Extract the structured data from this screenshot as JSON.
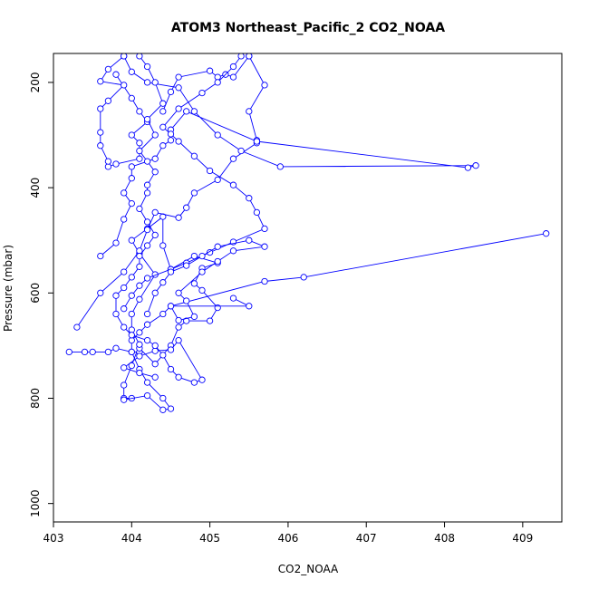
{
  "chart_data": {
    "type": "line",
    "title": "ATOM3 Northeast_Pacific_2 CO2_NOAA",
    "xlabel": "CO2_NOAA",
    "ylabel": "Pressure (mbar)",
    "xlim": [
      403.0,
      409.5
    ],
    "ylim": [
      1035,
      145
    ],
    "y_reversed": true,
    "x_ticks": [
      "403",
      "404",
      "405",
      "406",
      "407",
      "408",
      "409"
    ],
    "y_ticks": [
      "200",
      "400",
      "600",
      "800",
      "1000"
    ],
    "line_color": "#0000ff",
    "marker": "open-circle",
    "series": [
      {
        "points": [
          [
            403.2,
            712
          ],
          [
            403.4,
            712
          ],
          [
            403.5,
            712
          ],
          [
            403.7,
            712
          ],
          [
            403.8,
            705
          ],
          [
            404.0,
            712
          ],
          [
            404.1,
            712
          ],
          [
            404.1,
            705
          ],
          [
            404.3,
            735
          ],
          [
            404.5,
            700
          ],
          [
            404.6,
            665
          ],
          [
            404.7,
            653
          ],
          [
            405.0,
            653
          ],
          [
            405.1,
            628
          ],
          [
            404.9,
            595
          ],
          [
            404.8,
            582
          ],
          [
            404.9,
            553
          ],
          [
            405.1,
            543
          ],
          [
            404.8,
            530
          ],
          [
            404.5,
            555
          ],
          [
            404.4,
            510
          ],
          [
            404.4,
            455
          ],
          [
            404.2,
            478
          ],
          [
            404.0,
            500
          ],
          [
            404.1,
            525
          ],
          [
            404.3,
            565
          ],
          [
            404.1,
            612
          ],
          [
            404.0,
            640
          ],
          [
            404.0,
            670
          ],
          [
            404.1,
            698
          ],
          [
            404.0,
            738
          ],
          [
            403.9,
            775
          ],
          [
            403.9,
            800
          ],
          [
            404.0,
            800
          ]
        ]
      },
      {
        "points": [
          [
            403.3,
            665
          ],
          [
            403.6,
            600
          ],
          [
            403.9,
            560
          ],
          [
            404.1,
            520
          ],
          [
            404.2,
            480
          ],
          [
            404.3,
            447
          ],
          [
            404.6,
            457
          ],
          [
            404.7,
            438
          ],
          [
            404.8,
            410
          ],
          [
            405.1,
            385
          ],
          [
            405.3,
            345
          ],
          [
            405.6,
            315
          ],
          [
            405.6,
            310
          ],
          [
            405.5,
            255
          ],
          [
            405.7,
            205
          ],
          [
            405.5,
            150
          ]
        ]
      },
      {
        "points": [
          [
            403.6,
            530
          ],
          [
            403.8,
            505
          ],
          [
            403.9,
            460
          ],
          [
            404.0,
            430
          ],
          [
            403.9,
            410
          ],
          [
            404.0,
            382
          ],
          [
            404.0,
            360
          ],
          [
            404.3,
            345
          ],
          [
            404.4,
            320
          ],
          [
            404.5,
            310
          ],
          [
            404.5,
            290
          ],
          [
            404.7,
            255
          ],
          [
            405.6,
            312
          ],
          [
            408.3,
            362
          ],
          [
            408.4,
            358
          ],
          [
            405.9,
            360
          ],
          [
            405.4,
            330
          ],
          [
            405.1,
            300
          ],
          [
            404.8,
            255
          ],
          [
            404.6,
            210
          ],
          [
            404.2,
            200
          ],
          [
            404.0,
            180
          ],
          [
            403.9,
            150
          ]
        ]
      },
      {
        "points": [
          [
            409.3,
            487
          ],
          [
            406.2,
            570
          ],
          [
            405.7,
            578
          ],
          [
            404.5,
            625
          ],
          [
            404.4,
            640
          ],
          [
            404.2,
            660
          ],
          [
            404.1,
            675
          ],
          [
            404.0,
            690
          ],
          [
            404.0,
            712
          ],
          [
            404.1,
            745
          ],
          [
            404.2,
            770
          ],
          [
            404.4,
            800
          ],
          [
            404.5,
            820
          ],
          [
            404.4,
            822
          ],
          [
            404.2,
            795
          ],
          [
            403.9,
            803
          ]
        ]
      },
      {
        "points": [
          [
            403.8,
            185
          ],
          [
            404.0,
            230
          ],
          [
            404.1,
            255
          ],
          [
            404.2,
            275
          ],
          [
            404.0,
            300
          ],
          [
            404.1,
            315
          ],
          [
            404.1,
            345
          ],
          [
            403.8,
            355
          ],
          [
            403.7,
            360
          ],
          [
            403.7,
            350
          ],
          [
            403.6,
            320
          ],
          [
            403.6,
            295
          ],
          [
            403.6,
            250
          ],
          [
            403.7,
            235
          ],
          [
            403.9,
            205
          ],
          [
            403.6,
            198
          ],
          [
            403.7,
            175
          ],
          [
            403.9,
            150
          ]
        ]
      },
      {
        "points": [
          [
            404.4,
            255
          ],
          [
            404.5,
            218
          ],
          [
            404.6,
            190
          ],
          [
            405.0,
            178
          ],
          [
            405.1,
            190
          ],
          [
            405.2,
            185
          ],
          [
            405.3,
            190
          ],
          [
            405.5,
            150
          ]
        ]
      },
      {
        "points": [
          [
            403.9,
            630
          ],
          [
            404.0,
            605
          ],
          [
            404.1,
            586
          ],
          [
            404.2,
            572
          ],
          [
            404.5,
            555
          ],
          [
            404.7,
            543
          ],
          [
            405.0,
            523
          ],
          [
            405.3,
            503
          ],
          [
            405.7,
            478
          ],
          [
            405.6,
            447
          ],
          [
            405.5,
            420
          ],
          [
            405.3,
            395
          ],
          [
            405.0,
            368
          ],
          [
            404.8,
            340
          ],
          [
            404.6,
            312
          ],
          [
            404.5,
            298
          ],
          [
            404.4,
            285
          ],
          [
            404.6,
            250
          ],
          [
            404.9,
            220
          ],
          [
            405.1,
            200
          ],
          [
            405.3,
            170
          ],
          [
            405.4,
            150
          ]
        ]
      },
      {
        "points": [
          [
            404.2,
            640
          ],
          [
            404.3,
            600
          ],
          [
            404.4,
            580
          ],
          [
            404.5,
            560
          ],
          [
            404.7,
            548
          ],
          [
            404.9,
            530
          ],
          [
            405.1,
            512
          ],
          [
            405.5,
            500
          ],
          [
            405.7,
            512
          ],
          [
            405.3,
            520
          ],
          [
            405.1,
            540
          ],
          [
            404.9,
            560
          ],
          [
            404.6,
            600
          ],
          [
            404.7,
            615
          ],
          [
            404.8,
            645
          ],
          [
            404.6,
            652
          ],
          [
            404.5,
            625
          ],
          [
            405.5,
            625
          ],
          [
            405.3,
            610
          ]
        ]
      },
      {
        "points": [
          [
            404.3,
            760
          ],
          [
            404.1,
            752
          ],
          [
            403.9,
            742
          ],
          [
            404.1,
            720
          ],
          [
            404.3,
            710
          ],
          [
            404.5,
            708
          ],
          [
            404.6,
            690
          ],
          [
            404.9,
            765
          ],
          [
            404.8,
            770
          ],
          [
            404.6,
            760
          ],
          [
            404.5,
            745
          ],
          [
            404.4,
            718
          ],
          [
            404.3,
            700
          ],
          [
            404.2,
            690
          ],
          [
            404.0,
            680
          ],
          [
            403.9,
            665
          ],
          [
            403.8,
            640
          ],
          [
            403.8,
            605
          ],
          [
            403.9,
            590
          ],
          [
            404.0,
            570
          ],
          [
            404.1,
            550
          ],
          [
            404.1,
            530
          ],
          [
            404.2,
            510
          ],
          [
            404.3,
            490
          ],
          [
            404.2,
            465
          ],
          [
            404.1,
            440
          ],
          [
            404.2,
            410
          ],
          [
            404.2,
            395
          ],
          [
            404.3,
            370
          ],
          [
            404.2,
            350
          ],
          [
            404.1,
            330
          ],
          [
            404.3,
            300
          ],
          [
            404.2,
            270
          ],
          [
            404.4,
            240
          ],
          [
            404.3,
            200
          ],
          [
            404.2,
            170
          ],
          [
            404.1,
            150
          ]
        ]
      }
    ]
  }
}
